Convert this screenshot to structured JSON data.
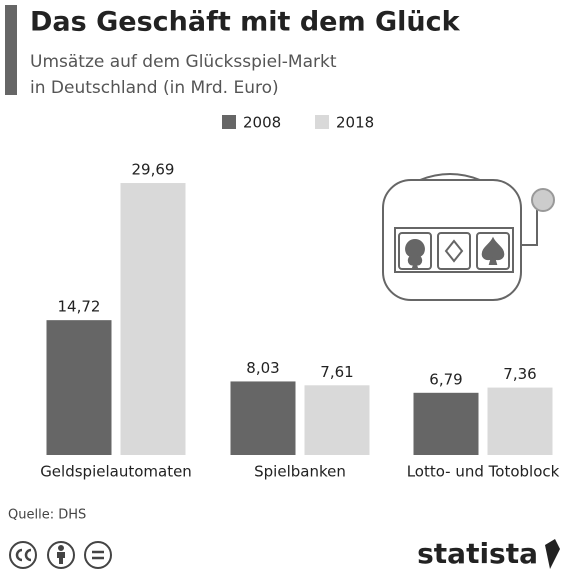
{
  "chart_data": {
    "type": "bar",
    "title": "Das Geschäft mit dem Glück",
    "subtitle": [
      "Umsätze auf dem Glücksspiel-Markt",
      "in Deutschland (in Mrd. Euro)"
    ],
    "categories": [
      "Geldspielautomaten",
      "Spielbanken",
      "Lotto- und Totoblock"
    ],
    "series": [
      {
        "name": "2008",
        "color": "#666666",
        "values": [
          14.72,
          8.03,
          6.79
        ],
        "value_labels": [
          "14,72",
          "8,03",
          "6,79"
        ]
      },
      {
        "name": "2018",
        "color": "#d9d9d9",
        "values": [
          29.69,
          7.61,
          7.36
        ],
        "value_labels": [
          "29,69",
          "7,61",
          "7,36"
        ]
      }
    ],
    "source": "Quelle: DHS",
    "brand": "statista"
  }
}
